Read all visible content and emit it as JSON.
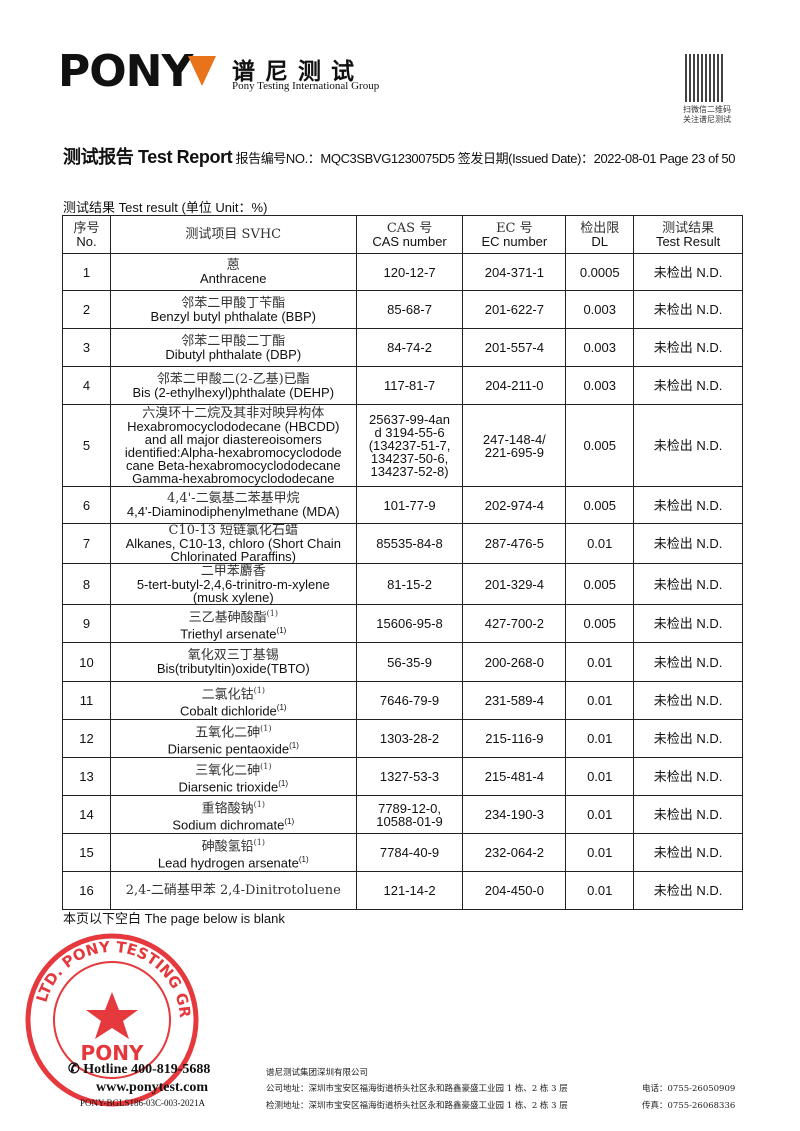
{
  "header": {
    "logo_text": "PONY",
    "brand_cn": "谱尼测试",
    "brand_en": "Pony Testing International Group",
    "qr_caption_1": "扫微信二维码",
    "qr_caption_2": "关注谱尼测试",
    "accent": "#e8731a"
  },
  "report": {
    "title": "测试报告 Test Report",
    "number_label": "报告编号NO.：",
    "number": "MQC3SBVG1230075D5",
    "date_label": "签发日期(Issued Date)：",
    "date": "2022-08-01",
    "page": "Page 23 of 50"
  },
  "result_caption": "测试结果 Test result (单位 Unit：%)",
  "table": {
    "headers": [
      [
        "序号",
        "No."
      ],
      [
        "测试项目  SVHC"
      ],
      [
        "CAS  号",
        "CAS number"
      ],
      [
        "EC 号",
        "EC number"
      ],
      [
        "检出限",
        "DL"
      ],
      [
        "测试结果",
        "Test Result"
      ]
    ],
    "rows": [
      {
        "no": "1",
        "name": [
          {
            "t": "蒽",
            "sup": ""
          },
          {
            "t": "Anthracene",
            "sup": ""
          }
        ],
        "cas": [
          "120-12-7"
        ],
        "ec": [
          "204-371-1"
        ],
        "dl": "0.0005",
        "result": "未检出 N.D."
      },
      {
        "no": "2",
        "name": [
          {
            "t": "邻苯二甲酸丁苄酯",
            "sup": ""
          },
          {
            "t": "Benzyl butyl phthalate (BBP)",
            "sup": ""
          }
        ],
        "cas": [
          "85-68-7"
        ],
        "ec": [
          "201-622-7"
        ],
        "dl": "0.003",
        "result": "未检出 N.D."
      },
      {
        "no": "3",
        "name": [
          {
            "t": "邻苯二甲酸二丁酯",
            "sup": ""
          },
          {
            "t": "Dibutyl phthalate (DBP)",
            "sup": ""
          }
        ],
        "cas": [
          "84-74-2"
        ],
        "ec": [
          "201-557-4"
        ],
        "dl": "0.003",
        "result": "未检出 N.D."
      },
      {
        "no": "4",
        "name": [
          {
            "t": "邻苯二甲酸二(2-乙基)已酯",
            "sup": ""
          },
          {
            "t": "Bis (2-ethylhexyl)phthalate (DEHP)",
            "sup": ""
          }
        ],
        "cas": [
          "117-81-7"
        ],
        "ec": [
          "204-211-0"
        ],
        "dl": "0.003",
        "result": "未检出 N.D."
      },
      {
        "no": "5",
        "name": [
          {
            "t": "六溴环十二烷及其非对映异构体",
            "sup": ""
          },
          {
            "t": "Hexabromocyclododecane (HBCDD)",
            "sup": ""
          },
          {
            "t": "and all major diastereoisomers",
            "sup": ""
          },
          {
            "t": "identified:Alpha-hexabromocyclodode",
            "sup": ""
          },
          {
            "t": "cane Beta-hexabromocyclododecane",
            "sup": ""
          },
          {
            "t": "Gamma-hexabromocyclododecane",
            "sup": ""
          }
        ],
        "cas": [
          "25637-99-4an",
          "d 3194-55-6",
          "(134237-51-7,",
          "134237-50-6,",
          "134237-52-8)"
        ],
        "ec": [
          "247-148-4/",
          "221-695-9"
        ],
        "dl": "0.005",
        "result": "未检出 N.D."
      },
      {
        "no": "6",
        "name": [
          {
            "t": "4,4'-二氨基二苯基甲烷",
            "sup": ""
          },
          {
            "t": "4,4'-Diaminodiphenylmethane (MDA)",
            "sup": ""
          }
        ],
        "cas": [
          "101-77-9"
        ],
        "ec": [
          "202-974-4"
        ],
        "dl": "0.005",
        "result": "未检出 N.D."
      },
      {
        "no": "7",
        "name": [
          {
            "t": "C10-13 短链氯化石蜡",
            "sup": ""
          },
          {
            "t": "Alkanes, C10-13, chloro (Short Chain",
            "sup": ""
          },
          {
            "t": "Chlorinated Paraffins)",
            "sup": ""
          }
        ],
        "cas": [
          "85535-84-8"
        ],
        "ec": [
          "287-476-5"
        ],
        "dl": "0.01",
        "result": "未检出 N.D."
      },
      {
        "no": "8",
        "name": [
          {
            "t": "二甲苯麝香",
            "sup": ""
          },
          {
            "t": "5-tert-butyl-2,4,6-trinitro-m-xylene",
            "sup": ""
          },
          {
            "t": "(musk xylene)",
            "sup": ""
          }
        ],
        "cas": [
          "81-15-2"
        ],
        "ec": [
          "201-329-4"
        ],
        "dl": "0.005",
        "result": "未检出 N.D."
      },
      {
        "no": "9",
        "name": [
          {
            "t": "三乙基砷酸酯",
            "sup": "(1)"
          },
          {
            "t": "Triethyl arsenate",
            "sup": "(1)"
          }
        ],
        "cas": [
          "15606-95-8"
        ],
        "ec": [
          "427-700-2"
        ],
        "dl": "0.005",
        "result": "未检出 N.D."
      },
      {
        "no": "10",
        "name": [
          {
            "t": "氧化双三丁基锡",
            "sup": ""
          },
          {
            "t": "Bis(tributyltin)oxide(TBTO)",
            "sup": ""
          }
        ],
        "cas": [
          "56-35-9"
        ],
        "ec": [
          "200-268-0"
        ],
        "dl": "0.01",
        "result": "未检出 N.D."
      },
      {
        "no": "11",
        "name": [
          {
            "t": "二氯化钴",
            "sup": "(1)"
          },
          {
            "t": "Cobalt dichloride",
            "sup": "(1)"
          }
        ],
        "cas": [
          "7646-79-9"
        ],
        "ec": [
          "231-589-4"
        ],
        "dl": "0.01",
        "result": "未检出 N.D."
      },
      {
        "no": "12",
        "name": [
          {
            "t": "五氧化二砷",
            "sup": "(1)"
          },
          {
            "t": "Diarsenic pentaoxide",
            "sup": "(1)"
          }
        ],
        "cas": [
          "1303-28-2"
        ],
        "ec": [
          "215-116-9"
        ],
        "dl": "0.01",
        "result": "未检出 N.D."
      },
      {
        "no": "13",
        "name": [
          {
            "t": "三氧化二砷",
            "sup": "(1)"
          },
          {
            "t": "Diarsenic trioxide",
            "sup": "(1)"
          }
        ],
        "cas": [
          "1327-53-3"
        ],
        "ec": [
          "215-481-4"
        ],
        "dl": "0.01",
        "result": "未检出 N.D."
      },
      {
        "no": "14",
        "name": [
          {
            "t": "重铬酸钠",
            "sup": "(1)"
          },
          {
            "t": "Sodium dichromate",
            "sup": "(1)"
          }
        ],
        "cas": [
          "7789-12-0,",
          "10588-01-9"
        ],
        "ec": [
          "234-190-3"
        ],
        "dl": "0.01",
        "result": "未检出 N.D."
      },
      {
        "no": "15",
        "name": [
          {
            "t": "砷酸氢铅",
            "sup": "(1)"
          },
          {
            "t": "Lead hydrogen arsenate",
            "sup": "(1)"
          }
        ],
        "cas": [
          "7784-40-9"
        ],
        "ec": [
          "232-064-2"
        ],
        "dl": "0.01",
        "result": "未检出 N.D."
      },
      {
        "no": "16",
        "name": [
          {
            "t": "2,4-二硝基甲苯 2,4-Dinitrotoluene",
            "sup": ""
          }
        ],
        "cas": [
          "121-14-2"
        ],
        "ec": [
          "204-450-0"
        ],
        "dl": "0.01",
        "result": "未检出 N.D."
      }
    ]
  },
  "blank_note": "本页以下空白 The page below is blank",
  "stamp": {
    "text": "LTD. PONY TESTING GROUP",
    "center": "PONY",
    "color": "#e0161b"
  },
  "footer": {
    "hotline": "Hotline 400-819-5688",
    "website": "www.ponytest.com",
    "form_code": "PONY-BGLS186-03C-003-2021A",
    "company": "谱尼测试集团深圳有限公司",
    "company_address": "公司地址：深圳市宝安区福海街道桥头社区永和路鑫豪盛工业园 1 栋、2 栋 3 层",
    "lab_address": "检测地址：深圳市宝安区福海街道桥头社区永和路鑫豪盛工业园 1 栋、2 栋 3 层",
    "phone": "电话：0755-26050909",
    "fax": "传真：0755-26068336"
  }
}
